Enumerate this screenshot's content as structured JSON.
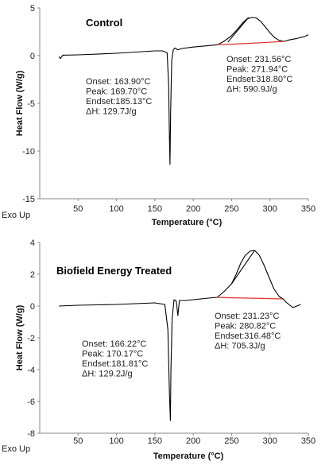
{
  "chart_data": [
    {
      "type": "line",
      "title": "Control",
      "xlabel": "Temperature (°C)",
      "ylabel": "Heat Flow (W/g)",
      "corner_label": "Exo Up",
      "xlim": [
        0,
        350
      ],
      "ylim": [
        -15,
        5
      ],
      "xticks": [
        "50",
        "100",
        "150",
        "200",
        "250",
        "300",
        "350"
      ],
      "yticks": [
        "5",
        "0",
        "-5",
        "-10",
        "-15"
      ],
      "xtick_values": [
        50,
        100,
        150,
        200,
        250,
        300,
        350
      ],
      "ytick_values": [
        5,
        0,
        -5,
        -10,
        -15
      ],
      "annotations": [
        {
          "lines": [
            "Onset: 163.90°C",
            "Peak: 169.70°C",
            "Endset:185.13°C",
            "ΔH: 129.7J/g"
          ]
        },
        {
          "lines": [
            "Onset: 231.56°C",
            "Peak: 271.94°C",
            "Endset:318.80°C",
            "ΔH: 590.9J/g"
          ]
        }
      ],
      "series": [
        {
          "color": "#000000",
          "x": [
            25,
            27,
            30,
            50,
            100,
            150,
            160,
            166,
            168,
            169,
            169.7,
            170.5,
            172,
            174,
            176,
            180,
            185,
            200,
            220,
            232,
            240,
            250,
            258,
            264,
            270,
            276,
            282,
            288,
            294,
            300,
            306,
            312,
            319,
            325,
            335,
            345,
            350
          ],
          "y": [
            -0.1,
            -0.3,
            0.05,
            0.08,
            0.25,
            0.5,
            0.5,
            0.3,
            -3,
            -8.5,
            -11.4,
            -6,
            -0.5,
            0.6,
            0.8,
            0.62,
            0.75,
            0.9,
            1.05,
            1.15,
            1.5,
            2.1,
            2.8,
            3.4,
            3.85,
            4.0,
            3.95,
            3.6,
            3.0,
            2.4,
            1.9,
            1.6,
            1.5,
            1.65,
            1.8,
            2.0,
            2.2
          ]
        },
        {
          "color": "#e0302a",
          "x": [
            232,
            250,
            270,
            290,
            319
          ],
          "y": [
            1.15,
            1.2,
            1.28,
            1.36,
            1.5
          ]
        },
        {
          "color": "#000000",
          "x": [
            245,
            272
          ],
          "y": [
            1.4,
            4.0
          ]
        }
      ]
    },
    {
      "type": "line",
      "title": "Biofield Energy Treated",
      "xlabel": "Temperature (°C)",
      "ylabel": "Heat Flow (W/g)",
      "corner_label": "Exo Up",
      "xlim": [
        0,
        350
      ],
      "ylim": [
        -8,
        4
      ],
      "xticks": [
        "50",
        "100",
        "150",
        "200",
        "250",
        "300",
        "350"
      ],
      "yticks": [
        "4",
        "2",
        "0",
        "-2",
        "-4",
        "-6",
        "-8"
      ],
      "xtick_values": [
        50,
        100,
        150,
        200,
        250,
        300,
        350
      ],
      "ytick_values": [
        4,
        2,
        0,
        -2,
        -4,
        -6,
        -8
      ],
      "annotations": [
        {
          "lines": [
            "Onset: 166.22°C",
            "Peak: 170.17°C",
            "Endset:181.81°C",
            "ΔH: 129.2J/g"
          ]
        },
        {
          "lines": [
            "Onset: 231.23°C",
            "Peak: 280.82°C",
            "Endset:316.48°C",
            "ΔH: 705.3J/g"
          ]
        }
      ],
      "series": [
        {
          "color": "#000000",
          "x": [
            25,
            50,
            100,
            150,
            163,
            167,
            169,
            170.2,
            171,
            172.5,
            175,
            178,
            180,
            182,
            190,
            200,
            220,
            231,
            240,
            250,
            256,
            262,
            268,
            274,
            280,
            286,
            292,
            298,
            305,
            312,
            317,
            322,
            330,
            340
          ],
          "y": [
            0.0,
            0.05,
            0.1,
            0.2,
            0.1,
            -1.5,
            -5.5,
            -7.2,
            -4,
            -0.8,
            0.4,
            0.3,
            -0.6,
            0.35,
            0.35,
            0.4,
            0.5,
            0.55,
            0.9,
            1.4,
            2.0,
            2.7,
            3.2,
            3.45,
            3.5,
            3.2,
            2.6,
            1.9,
            1.1,
            0.6,
            0.45,
            0.2,
            -0.1,
            0.1
          ]
        },
        {
          "color": "#e0302a",
          "x": [
            231,
            250,
            270,
            290,
            316
          ],
          "y": [
            0.55,
            0.52,
            0.5,
            0.48,
            0.45
          ]
        },
        {
          "color": "#000000",
          "x": [
            250,
            280
          ],
          "y": [
            1.4,
            3.5
          ]
        }
      ]
    }
  ]
}
